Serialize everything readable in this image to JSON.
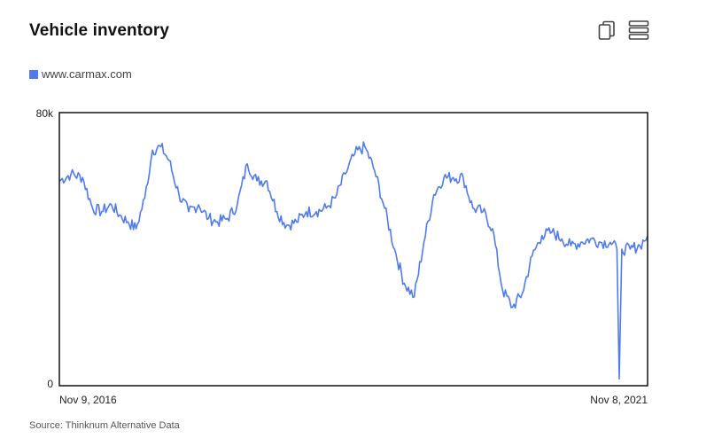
{
  "header": {
    "title": "Vehicle inventory",
    "copy_icon": "copy-icon",
    "menu_icon": "menu-icon"
  },
  "legend": {
    "label": "www.carmax.com",
    "color": "#4f7bef"
  },
  "source": "Source: Thinknum Alternative Data",
  "chart_data": {
    "type": "line",
    "title": "Vehicle inventory",
    "xlabel": "",
    "ylabel": "",
    "x_tick_labels": [
      "Nov 9, 2016",
      "Nov 8, 2021"
    ],
    "y_tick_labels": [
      "80k",
      "0"
    ],
    "ylim": [
      0,
      80000
    ],
    "xlim": [
      "2016-11-09",
      "2021-11-08"
    ],
    "grid": false,
    "legend_position": "top-left",
    "series": [
      {
        "name": "www.carmax.com",
        "color": "#4f7bef",
        "x": [
          "2016-11-09",
          "2016-12-15",
          "2017-01-20",
          "2017-02-20",
          "2017-03-20",
          "2017-04-20",
          "2017-05-15",
          "2017-06-10",
          "2017-07-05",
          "2017-08-01",
          "2017-08-25",
          "2017-09-20",
          "2017-10-15",
          "2017-11-15",
          "2017-12-15",
          "2018-01-15",
          "2018-02-15",
          "2018-03-15",
          "2018-04-15",
          "2018-05-15",
          "2018-06-15",
          "2018-07-15",
          "2018-08-15",
          "2018-09-15",
          "2018-10-15",
          "2018-11-15",
          "2018-12-15",
          "2019-01-15",
          "2019-02-15",
          "2019-03-15",
          "2019-04-15",
          "2019-05-15",
          "2019-06-15",
          "2019-07-15",
          "2019-08-15",
          "2019-09-15",
          "2019-10-15",
          "2019-11-15",
          "2019-12-15",
          "2020-01-15",
          "2020-02-15",
          "2020-03-15",
          "2020-04-15",
          "2020-05-15",
          "2020-06-15",
          "2020-07-15",
          "2020-08-15",
          "2020-09-15",
          "2020-10-15",
          "2020-11-15",
          "2020-12-15",
          "2021-01-15",
          "2021-02-15",
          "2021-03-15",
          "2021-04-15",
          "2021-05-15",
          "2021-06-15",
          "2021-07-15",
          "2021-08-05",
          "2021-08-12",
          "2021-08-20",
          "2021-09-15",
          "2021-10-15",
          "2021-11-08"
        ],
        "values": [
          60000,
          62000,
          61000,
          52000,
          51000,
          53000,
          50000,
          48000,
          46000,
          55000,
          69000,
          70000,
          66000,
          56000,
          51000,
          53000,
          49000,
          48000,
          49000,
          53000,
          65000,
          60000,
          60000,
          51000,
          47000,
          48000,
          51000,
          51000,
          52000,
          55000,
          62000,
          68000,
          70000,
          63000,
          52000,
          40000,
          30000,
          26000,
          42000,
          56000,
          61000,
          61000,
          61000,
          52000,
          51000,
          46000,
          28000,
          23000,
          27000,
          38000,
          44000,
          45000,
          43000,
          41000,
          42000,
          43000,
          42000,
          42000,
          40000,
          2000,
          40000,
          40000,
          41000,
          44000
        ]
      }
    ]
  }
}
